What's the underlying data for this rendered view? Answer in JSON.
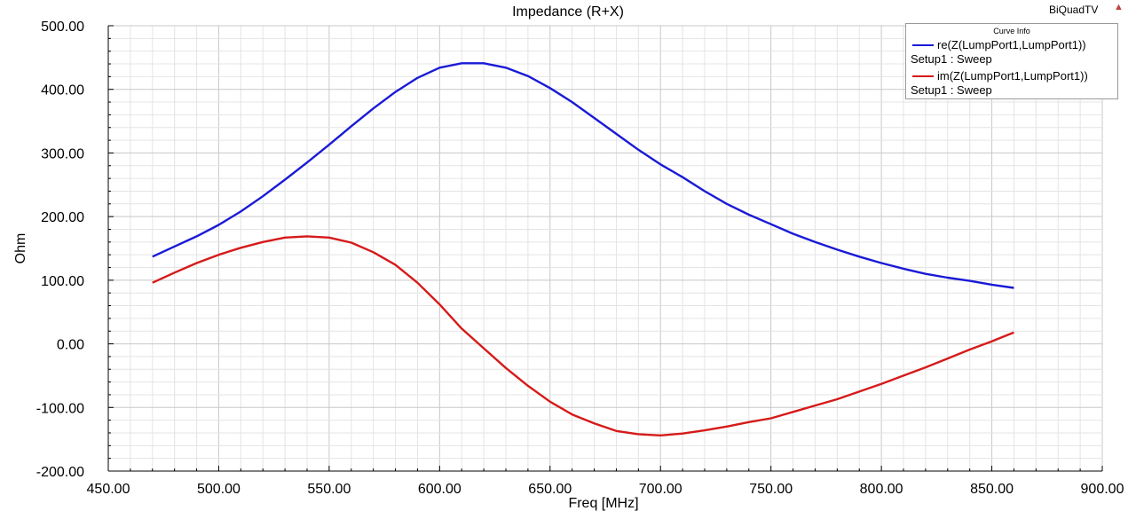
{
  "project_name": "BiQuadTV",
  "chart_data": {
    "type": "line",
    "title": "Impedance (R+X)",
    "xlabel": "Freq [MHz]",
    "ylabel": "Ohm",
    "xlim": [
      450,
      900
    ],
    "ylim": [
      -200,
      500
    ],
    "x_ticks": [
      450,
      500,
      550,
      600,
      650,
      700,
      750,
      800,
      850,
      900
    ],
    "x_tick_labels": [
      "450.00",
      "500.00",
      "550.00",
      "600.00",
      "650.00",
      "700.00",
      "750.00",
      "800.00",
      "850.00",
      "900.00"
    ],
    "y_ticks": [
      -200,
      -100,
      0,
      100,
      200,
      300,
      400,
      500
    ],
    "y_tick_labels": [
      "-200.00",
      "-100.00",
      "0.00",
      "100.00",
      "200.00",
      "300.00",
      "400.00",
      "500.00"
    ],
    "grid": true,
    "legend_title": "Curve Info",
    "legend_position": "top-right",
    "series": [
      {
        "name": "re(Z(LumpPort1,LumpPort1))",
        "setup": "Setup1 : Sweep",
        "color": "#1a1ad6",
        "x": [
          470,
          480,
          490,
          500,
          510,
          520,
          530,
          540,
          550,
          560,
          570,
          580,
          590,
          600,
          610,
          620,
          630,
          640,
          650,
          660,
          670,
          680,
          690,
          700,
          710,
          720,
          730,
          740,
          750,
          760,
          770,
          780,
          790,
          800,
          810,
          820,
          830,
          840,
          850,
          860
        ],
        "y": [
          137,
          153,
          169,
          187,
          208,
          232,
          258,
          285,
          313,
          342,
          370,
          396,
          418,
          434,
          441,
          441,
          434,
          421,
          402,
          380,
          355,
          330,
          305,
          282,
          262,
          240,
          220,
          203,
          188,
          173,
          160,
          148,
          137,
          127,
          118,
          110,
          104,
          99,
          93,
          88
        ]
      },
      {
        "name": "im(Z(LumpPort1,LumpPort1))",
        "setup": "Setup1 : Sweep",
        "color": "#d61a1a",
        "x": [
          470,
          480,
          490,
          500,
          510,
          520,
          530,
          540,
          550,
          560,
          570,
          580,
          590,
          600,
          610,
          620,
          630,
          640,
          650,
          660,
          670,
          680,
          690,
          700,
          710,
          720,
          730,
          740,
          750,
          760,
          770,
          780,
          790,
          800,
          810,
          820,
          830,
          840,
          850,
          860
        ],
        "y": [
          96,
          112,
          127,
          140,
          151,
          160,
          167,
          169,
          167,
          159,
          144,
          124,
          96,
          62,
          24,
          -7,
          -38,
          -66,
          -91,
          -111,
          -125,
          -137,
          -142,
          -144,
          -141,
          -136,
          -130,
          -123,
          -117,
          -107,
          -97,
          -87,
          -75,
          -63,
          -50,
          -37,
          -23,
          -9,
          4,
          18
        ]
      }
    ]
  }
}
